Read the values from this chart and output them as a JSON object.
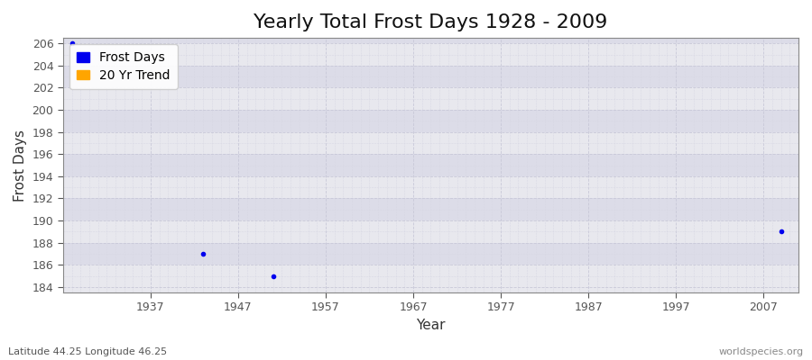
{
  "title": "Yearly Total Frost Days 1928 - 2009",
  "xlabel": "Year",
  "ylabel": "Frost Days",
  "subtitle_left": "Latitude 44.25 Longitude 46.25",
  "subtitle_right": "worldspecies.org",
  "xlim": [
    1927,
    2011
  ],
  "ylim": [
    183.5,
    206.5
  ],
  "xticks": [
    1937,
    1947,
    1957,
    1967,
    1977,
    1987,
    1997,
    2007
  ],
  "yticks": [
    184,
    186,
    188,
    190,
    192,
    194,
    196,
    198,
    200,
    202,
    204,
    206
  ],
  "background_color": "#ffffff",
  "plot_bg_color": "#eaeaf0",
  "band_color_light": "#e8e8ee",
  "band_color_dark": "#dcdce8",
  "grid_color_major": "#c8c8d8",
  "grid_color_minor": "#d8d8e4",
  "frost_days_color": "#0000ee",
  "trend_color": "#ffa500",
  "data_points": [
    {
      "year": 1928,
      "value": 206
    },
    {
      "year": 1943,
      "value": 187
    },
    {
      "year": 1951,
      "value": 185
    },
    {
      "year": 2009,
      "value": 189
    }
  ],
  "legend_labels": [
    "Frost Days",
    "20 Yr Trend"
  ],
  "legend_colors": [
    "#0000ee",
    "#ffa500"
  ],
  "marker_size": 3,
  "title_fontsize": 16,
  "axis_label_fontsize": 11,
  "tick_fontsize": 9,
  "subtitle_fontsize": 8
}
